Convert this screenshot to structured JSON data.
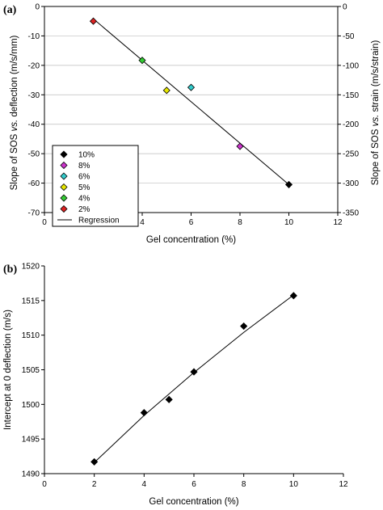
{
  "chart_data": [
    {
      "type": "scatter",
      "panel_label": "(a)",
      "xlabel": "Gel concentration (%)",
      "ylabel": "Slope of SOS vs. deflection (m/s/mm)",
      "ylabel_parts": [
        "Slope of SOS ",
        "vs.",
        " deflection (m/s/mm)"
      ],
      "y2label": "Slope of SOS vs. strain (m/s/strain)",
      "y2label_parts": [
        "Slope of SOS ",
        "vs.",
        " strain (m/s/strain)"
      ],
      "xlim": [
        0,
        12
      ],
      "ylim": [
        -70,
        0
      ],
      "y2lim": [
        -350,
        0
      ],
      "xticks": [
        0,
        2,
        4,
        6,
        8,
        10,
        12
      ],
      "yticks": [
        0,
        -10,
        -20,
        -30,
        -40,
        -50,
        -60,
        -70
      ],
      "y2ticks": [
        0,
        -50,
        -100,
        -150,
        -200,
        -250,
        -300,
        -350
      ],
      "grid": "horizontal",
      "legend_position": "left",
      "series": [
        {
          "name": "10%",
          "color": "#000000",
          "x": [
            10
          ],
          "y": [
            -60.5
          ]
        },
        {
          "name": "8%",
          "color": "#cc33cc",
          "x": [
            8
          ],
          "y": [
            -47.5
          ]
        },
        {
          "name": "6%",
          "color": "#33cccc",
          "x": [
            6
          ],
          "y": [
            -27.5
          ]
        },
        {
          "name": "5%",
          "color": "#e6e600",
          "x": [
            5
          ],
          "y": [
            -28.5
          ]
        },
        {
          "name": "4%",
          "color": "#33cc33",
          "x": [
            4
          ],
          "y": [
            -18.3
          ]
        },
        {
          "name": "2%",
          "color": "#dd2222",
          "x": [
            2
          ],
          "y": [
            -5
          ]
        }
      ],
      "regression": {
        "name": "Regression",
        "x": [
          2,
          10
        ],
        "y": [
          -4.2,
          -60.5
        ]
      }
    },
    {
      "type": "scatter",
      "panel_label": "(b)",
      "xlabel": "Gel concentration (%)",
      "ylabel": "Intercept at 0 deflection (m/s)",
      "xlim": [
        0,
        12
      ],
      "ylim": [
        1490,
        1520
      ],
      "xticks": [
        0,
        2,
        4,
        6,
        8,
        10,
        12
      ],
      "yticks": [
        1490,
        1495,
        1500,
        1505,
        1510,
        1515,
        1520
      ],
      "grid": "none",
      "series": [
        {
          "name": "",
          "color": "#000000",
          "x": [
            2,
            4,
            5,
            6,
            8,
            10
          ],
          "y": [
            1491.7,
            1498.8,
            1500.7,
            1504.7,
            1511.3,
            1515.7
          ]
        }
      ],
      "fit_line": {
        "x": [
          2,
          4,
          6,
          8,
          10
        ],
        "y": [
          1491.6,
          1498.4,
          1504.6,
          1510.4,
          1515.8
        ]
      }
    }
  ]
}
